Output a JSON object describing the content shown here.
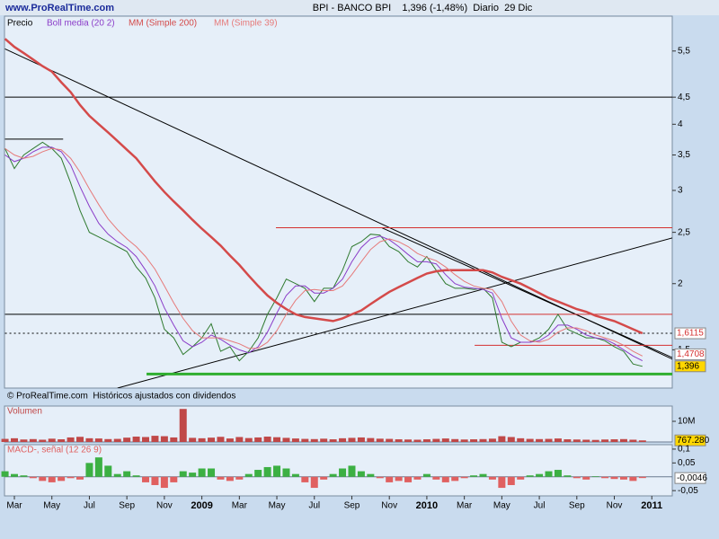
{
  "header": {
    "site": "www.ProRealTime.com",
    "title": "BPI - BANCO BPI    1,396 (-1,48%)  Diario  29 Dic"
  },
  "chart_data": [
    {
      "type": "line",
      "log_scale": true,
      "source_note": "© ProRealTime.com  Históricos ajustados con dividendos",
      "ylim": [
        1.27,
        6.4
      ],
      "yticks": [
        {
          "value": 5.5,
          "label": "5,5"
        },
        {
          "value": 4.5,
          "label": "4,5"
        },
        4,
        {
          "value": 3.5,
          "label": "3,5"
        },
        3,
        {
          "value": 2.5,
          "label": "2,5"
        },
        2,
        {
          "value": 1.5,
          "label": "1,5"
        }
      ],
      "series": [
        {
          "name": "Precio",
          "color": "#2f7a2f",
          "width": 1,
          "values": [
            3.6,
            3.3,
            3.5,
            3.6,
            3.7,
            3.6,
            3.45,
            3.1,
            2.75,
            2.5,
            2.45,
            2.4,
            2.35,
            2.3,
            2.15,
            2.05,
            1.88,
            1.64,
            1.58,
            1.47,
            1.52,
            1.58,
            1.68,
            1.49,
            1.52,
            1.43,
            1.49,
            1.58,
            1.75,
            1.88,
            2.04,
            2.0,
            1.96,
            1.85,
            1.96,
            1.96,
            2.12,
            2.35,
            2.4,
            2.48,
            2.47,
            2.35,
            2.3,
            2.2,
            2.15,
            2.25,
            2.12,
            2.0,
            1.96,
            1.96,
            1.95,
            1.96,
            1.88,
            1.55,
            1.52,
            1.55,
            1.55,
            1.58,
            1.64,
            1.75,
            1.64,
            1.61,
            1.58,
            1.58,
            1.56,
            1.52,
            1.49,
            1.41,
            1.396,
            null
          ]
        },
        {
          "name": "Boll media (20 2)",
          "color": "#8a3cc8",
          "width": 1,
          "values": [
            3.5,
            3.4,
            3.45,
            3.55,
            3.62,
            3.62,
            3.55,
            3.35,
            3.05,
            2.8,
            2.6,
            2.48,
            2.4,
            2.34,
            2.25,
            2.12,
            1.98,
            1.8,
            1.67,
            1.56,
            1.52,
            1.55,
            1.6,
            1.57,
            1.53,
            1.5,
            1.48,
            1.52,
            1.62,
            1.76,
            1.9,
            1.98,
            1.98,
            1.92,
            1.92,
            1.96,
            2.04,
            2.2,
            2.34,
            2.43,
            2.46,
            2.42,
            2.35,
            2.27,
            2.2,
            2.2,
            2.18,
            2.08,
            2.0,
            1.97,
            1.96,
            1.95,
            1.92,
            1.72,
            1.58,
            1.55,
            1.55,
            1.56,
            1.6,
            1.67,
            1.67,
            1.64,
            1.6,
            1.58,
            1.57,
            1.54,
            1.5,
            1.46,
            1.43,
            null
          ]
        },
        {
          "name": "MM (Simple 200)",
          "color": "#d44a4a",
          "width": 2.5,
          "values": [
            5.8,
            5.6,
            5.45,
            5.3,
            5.15,
            5.03,
            4.8,
            4.6,
            4.35,
            4.15,
            4.0,
            3.86,
            3.72,
            3.58,
            3.45,
            3.28,
            3.12,
            2.98,
            2.86,
            2.75,
            2.64,
            2.54,
            2.45,
            2.36,
            2.26,
            2.17,
            2.07,
            1.98,
            1.9,
            1.84,
            1.79,
            1.75,
            1.73,
            1.72,
            1.71,
            1.7,
            1.72,
            1.75,
            1.78,
            1.83,
            1.88,
            1.93,
            1.97,
            2.01,
            2.05,
            2.09,
            2.11,
            2.12,
            2.12,
            2.12,
            2.12,
            2.12,
            2.1,
            2.06,
            2.03,
            2.0,
            1.96,
            1.92,
            1.88,
            1.85,
            1.82,
            1.79,
            1.77,
            1.74,
            1.72,
            1.7,
            1.67,
            1.64,
            1.6115,
            null
          ]
        },
        {
          "name": "MM (Simple 39)",
          "color": "#e67a7a",
          "width": 1,
          "values": [
            3.6,
            3.5,
            3.45,
            3.48,
            3.55,
            3.6,
            3.58,
            3.45,
            3.25,
            3.02,
            2.82,
            2.65,
            2.53,
            2.43,
            2.35,
            2.25,
            2.13,
            1.98,
            1.84,
            1.72,
            1.63,
            1.58,
            1.58,
            1.58,
            1.56,
            1.54,
            1.51,
            1.51,
            1.55,
            1.63,
            1.75,
            1.86,
            1.94,
            1.95,
            1.94,
            1.94,
            1.98,
            2.08,
            2.2,
            2.32,
            2.4,
            2.43,
            2.4,
            2.35,
            2.28,
            2.24,
            2.21,
            2.15,
            2.08,
            2.02,
            1.98,
            1.96,
            1.95,
            1.85,
            1.7,
            1.6,
            1.56,
            1.55,
            1.57,
            1.62,
            1.65,
            1.65,
            1.63,
            1.6,
            1.58,
            1.56,
            1.53,
            1.49,
            1.46,
            null
          ]
        }
      ],
      "lines": [
        {
          "from": [
            0,
            5.55
          ],
          "to": [
            71.2,
            1.44
          ],
          "color": "#000000",
          "width": 1
        },
        {
          "from": [
            12,
            1.27
          ],
          "to": [
            71.2,
            2.44
          ],
          "color": "#000000",
          "width": 1
        },
        {
          "from": [
            40.2,
            2.55
          ],
          "to": [
            71.2,
            1.45
          ],
          "color": "#000000",
          "width": 1
        },
        {
          "from": [
            0,
            3.75
          ],
          "to": [
            6.2,
            3.75
          ],
          "color": "#000000",
          "width": 1
        },
        {
          "from": [
            0,
            4.5
          ],
          "to": [
            71.2,
            4.5
          ],
          "color": "#000000",
          "width": 1
        },
        {
          "from": [
            0,
            1.75
          ],
          "to": [
            52.7,
            1.75
          ],
          "color": "#000000",
          "width": 1
        },
        {
          "from": [
            52.7,
            1.75
          ],
          "to": [
            71.2,
            1.75
          ],
          "color": "#d43030",
          "width": 1
        },
        {
          "from": [
            28.9,
            2.55
          ],
          "to": [
            71.2,
            2.55
          ],
          "color": "#d43030",
          "width": 1
        },
        {
          "from": [
            50.1,
            1.53
          ],
          "to": [
            71.2,
            1.53
          ],
          "color": "#d43030",
          "width": 1
        },
        {
          "from": [
            15.1,
            1.35
          ],
          "to": [
            71.2,
            1.35
          ],
          "color": "#2fae2f",
          "width": 3
        },
        {
          "from": [
            0,
            1.6115
          ],
          "to": [
            71.2,
            1.6115
          ],
          "color": "#000000",
          "width": 1,
          "dashed": true
        }
      ],
      "price_labels": [
        {
          "value": 1.6115,
          "label": "1,6115",
          "color": "#d43030",
          "bg": "#ffffff"
        },
        {
          "value": 1.4708,
          "label": "1,4708",
          "color": "#d43030",
          "bg": "#ffffff"
        },
        {
          "value": 1.396,
          "label": "1,396",
          "color": "#000000",
          "bg": "#ffd700"
        }
      ]
    },
    {
      "type": "bar",
      "title": "Volumen",
      "color": "#c04848",
      "ylim": [
        0,
        17400000
      ],
      "yticks": [
        {
          "value": 10000000,
          "label": "10M"
        }
      ],
      "values": [
        1500000,
        1800000,
        1200000,
        1400000,
        1100000,
        1600000,
        1300000,
        2200000,
        2500000,
        1800000,
        1700000,
        1400000,
        1500000,
        2100000,
        2600000,
        2400000,
        3000000,
        2800000,
        2200000,
        16000000,
        2000000,
        1800000,
        2100000,
        2500000,
        1700000,
        2400000,
        1900000,
        2200000,
        2600000,
        2300000,
        2000000,
        1700000,
        1500000,
        1400000,
        1600000,
        1300000,
        1800000,
        2000000,
        2200000,
        1900000,
        1600000,
        1500000,
        1300000,
        1200000,
        1100000,
        1300000,
        1500000,
        1700000,
        1400000,
        1200000,
        1300000,
        1400000,
        1600000,
        2800000,
        2400000,
        1800000,
        1500000,
        1400000,
        1500000,
        1700000,
        1300000,
        1200000,
        1100000,
        1000000,
        1200000,
        1300000,
        1400000,
        1100000,
        767280,
        null
      ],
      "last_label": {
        "value": 767280,
        "label": "767.280"
      }
    },
    {
      "type": "bar",
      "title": "MACD-, señal (12 26 9)",
      "color": "#3cb043",
      "negative_color": "#e06060",
      "ylim": [
        -0.069,
        0.116
      ],
      "yticks": [
        {
          "value": 0.1,
          "label": "0,1"
        },
        {
          "value": 0.05,
          "label": "0,05"
        },
        {
          "value": -0.05,
          "label": "-0,05"
        }
      ],
      "values": [
        0.02,
        0.01,
        0.005,
        -0.005,
        -0.015,
        -0.02,
        -0.015,
        -0.005,
        -0.01,
        0.05,
        0.07,
        0.04,
        0.01,
        0.02,
        0.005,
        -0.02,
        -0.03,
        -0.04,
        -0.02,
        0.02,
        0.015,
        0.03,
        0.03,
        -0.01,
        -0.015,
        -0.01,
        0.01,
        0.025,
        0.035,
        0.04,
        0.03,
        0.01,
        -0.02,
        -0.04,
        -0.01,
        0.01,
        0.03,
        0.04,
        0.02,
        0.01,
        -0.005,
        -0.02,
        -0.015,
        -0.02,
        -0.01,
        0.01,
        -0.01,
        -0.02,
        -0.015,
        -0.005,
        0.005,
        0.01,
        -0.01,
        -0.04,
        -0.03,
        -0.01,
        0.005,
        0.01,
        0.02,
        0.025,
        0.005,
        -0.005,
        -0.01,
        0.002,
        -0.005,
        -0.008,
        -0.01,
        -0.015,
        -0.0046,
        null
      ],
      "last_label": {
        "value": -0.0046,
        "label": "-0,0046"
      },
      "categories": [
        null,
        "Mar",
        null,
        null,
        null,
        "May",
        null,
        null,
        null,
        "Jul",
        null,
        null,
        null,
        "Sep",
        null,
        null,
        null,
        "Nov",
        null,
        null,
        null,
        "2009",
        null,
        null,
        null,
        "Mar",
        null,
        null,
        null,
        "May",
        null,
        null,
        null,
        "Jul",
        null,
        null,
        null,
        "Sep",
        null,
        null,
        null,
        "Nov",
        null,
        null,
        null,
        "2010",
        null,
        null,
        null,
        "Mar",
        null,
        null,
        null,
        "May",
        null,
        null,
        null,
        "Jul",
        null,
        null,
        null,
        "Sep",
        null,
        null,
        null,
        "Nov",
        null,
        null,
        null,
        "2011"
      ]
    }
  ]
}
